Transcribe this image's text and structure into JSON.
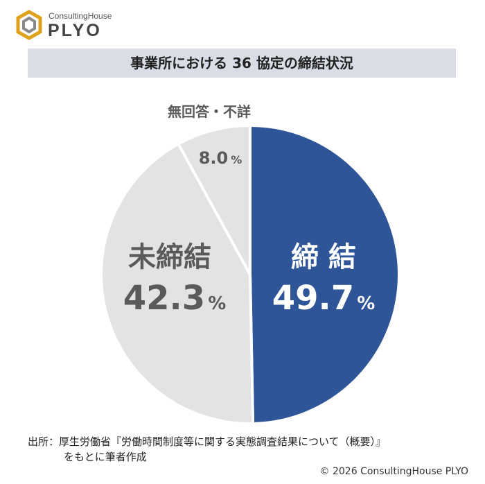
{
  "brand": {
    "small": "ConsultingHouse",
    "big": "PLYO"
  },
  "title": "事業所における 36 協定の締結状況",
  "chart_data": {
    "type": "pie",
    "title": "事業所における 36 協定の締結状況",
    "unit": "%",
    "slices": [
      {
        "label": "締 結",
        "value": 49.7,
        "color": "#2e5597",
        "label_color": "#ffffff"
      },
      {
        "label": "未締結",
        "value": 42.3,
        "color": "#e3e3e3",
        "label_color": "#5a5a5a"
      },
      {
        "label": "無回答・不詳",
        "value": 8.0,
        "color": "#e3e3e3",
        "label_color": "#5a5a5a"
      }
    ]
  },
  "source": {
    "line1": "出所：厚生労働省『労働時間制度等に関する実態調査結果について（概要）』",
    "line2": "をもとに筆者作成"
  },
  "copyright": "© 2026 ConsultingHouse PLYO"
}
